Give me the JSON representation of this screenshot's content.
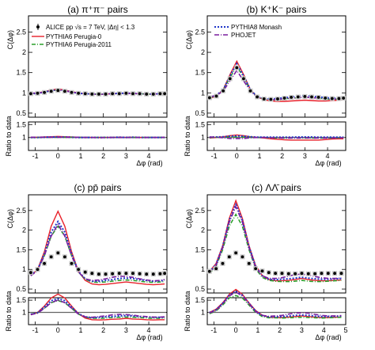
{
  "figure": {
    "y_label_main": "C(Δφ)",
    "y_label_ratio": "Ratio to data",
    "x_label": "Δφ (rad)"
  },
  "legend_left": {
    "data_label": "ALICE pp √s = 7 TeV, |Δη| < 1.3",
    "items": [
      "PYTHIA6 Perugia-0",
      "PYTHIA6 Perugia-2011"
    ]
  },
  "legend_right": {
    "items": [
      "PYTHIA8 Monash",
      "PHOJET"
    ]
  },
  "colors": {
    "data": "#000000",
    "perugia0": "#e8202a",
    "perugia2011": "#2ca02c",
    "monash": "#1f35c8",
    "phojet": "#7a1f9e",
    "band": "#c8c8c8"
  },
  "chart_data": [
    {
      "type": "line",
      "title": "(a) π⁺π⁻ pairs",
      "xlim": [
        -1.3,
        4.8
      ],
      "ylim": [
        0.4,
        2.9
      ],
      "ratio_ylim": [
        0.5,
        1.6
      ],
      "x": [
        -1.2,
        -0.9,
        -0.6,
        -0.3,
        0,
        0.3,
        0.6,
        0.9,
        1.2,
        1.5,
        1.8,
        2.1,
        2.4,
        2.7,
        3.0,
        3.3,
        3.6,
        3.9,
        4.2,
        4.5,
        4.7
      ],
      "series": [
        {
          "name": "ALICE pp √s = 7 TeV, |Δη| < 1.3",
          "key": "data",
          "values": [
            0.98,
            0.99,
            1.01,
            1.04,
            1.06,
            1.04,
            1.01,
            0.99,
            0.98,
            0.97,
            0.97,
            0.97,
            0.98,
            0.98,
            0.99,
            0.98,
            0.98,
            0.97,
            0.97,
            0.98,
            0.98
          ]
        },
        {
          "name": "PYTHIA6 Perugia-0",
          "key": "perugia0",
          "values": [
            0.98,
            1.0,
            1.03,
            1.07,
            1.1,
            1.07,
            1.03,
            1.0,
            0.98,
            0.97,
            0.97,
            0.97,
            0.98,
            0.99,
            0.99,
            0.99,
            0.98,
            0.97,
            0.97,
            0.98,
            0.98
          ]
        },
        {
          "name": "PYTHIA6 Perugia-2011",
          "key": "perugia2011",
          "values": [
            0.98,
            0.99,
            1.02,
            1.05,
            1.07,
            1.05,
            1.02,
            0.99,
            0.98,
            0.97,
            0.97,
            0.97,
            0.98,
            0.98,
            0.99,
            0.98,
            0.98,
            0.97,
            0.97,
            0.98,
            0.98
          ]
        },
        {
          "name": "PYTHIA8 Monash",
          "key": "monash",
          "values": [
            0.98,
            0.99,
            1.02,
            1.06,
            1.08,
            1.06,
            1.02,
            0.99,
            0.98,
            0.97,
            0.97,
            0.97,
            0.98,
            0.99,
            0.99,
            0.99,
            0.98,
            0.97,
            0.97,
            0.98,
            0.98
          ]
        },
        {
          "name": "PHOJET",
          "key": "phojet",
          "values": [
            0.99,
            1.0,
            1.02,
            1.05,
            1.07,
            1.05,
            1.02,
            1.0,
            0.98,
            0.97,
            0.96,
            0.97,
            0.98,
            0.98,
            0.99,
            0.98,
            0.98,
            0.97,
            0.97,
            0.98,
            0.99
          ]
        }
      ],
      "ratios": [
        {
          "key": "perugia0",
          "values": [
            1.0,
            1.01,
            1.02,
            1.03,
            1.04,
            1.03,
            1.02,
            1.01,
            1.0,
            1.0,
            1.0,
            1.0,
            1.0,
            1.01,
            1.0,
            1.01,
            1.0,
            1.0,
            1.0,
            1.0,
            1.0
          ]
        },
        {
          "key": "perugia2011",
          "values": [
            1.0,
            1.0,
            1.01,
            1.01,
            1.01,
            1.01,
            1.01,
            1.0,
            1.0,
            1.0,
            1.0,
            1.0,
            1.0,
            1.0,
            1.0,
            1.0,
            1.0,
            1.0,
            1.0,
            1.0,
            1.0
          ]
        },
        {
          "key": "monash",
          "values": [
            1.0,
            1.0,
            1.01,
            1.02,
            1.02,
            1.02,
            1.01,
            1.0,
            1.0,
            1.0,
            1.0,
            1.0,
            1.0,
            1.01,
            1.0,
            1.01,
            1.0,
            1.0,
            1.0,
            1.0,
            1.0
          ]
        },
        {
          "key": "phojet",
          "values": [
            1.01,
            1.01,
            1.01,
            1.01,
            1.01,
            1.01,
            1.01,
            1.01,
            1.0,
            1.0,
            0.99,
            1.0,
            1.0,
            1.0,
            1.0,
            1.0,
            1.0,
            1.0,
            1.0,
            1.0,
            1.01
          ]
        }
      ]
    },
    {
      "type": "line",
      "title": "(b) K⁺K⁻ pairs",
      "xlim": [
        -1.3,
        4.8
      ],
      "ylim": [
        0.4,
        2.9
      ],
      "ratio_ylim": [
        0.5,
        1.6
      ],
      "x": [
        -1.2,
        -0.9,
        -0.6,
        -0.3,
        0,
        0.3,
        0.6,
        0.9,
        1.2,
        1.5,
        1.8,
        2.1,
        2.4,
        2.7,
        3.0,
        3.3,
        3.6,
        3.9,
        4.2,
        4.5,
        4.7
      ],
      "series": [
        {
          "name": "data",
          "key": "data",
          "values": [
            0.88,
            0.92,
            1.05,
            1.35,
            1.62,
            1.35,
            1.05,
            0.9,
            0.85,
            0.84,
            0.85,
            0.87,
            0.89,
            0.9,
            0.91,
            0.9,
            0.89,
            0.87,
            0.86,
            0.86,
            0.87
          ]
        },
        {
          "name": "PYTHIA6 Perugia-0",
          "key": "perugia0",
          "values": [
            0.86,
            0.92,
            1.08,
            1.45,
            1.78,
            1.45,
            1.08,
            0.9,
            0.83,
            0.8,
            0.79,
            0.79,
            0.8,
            0.81,
            0.82,
            0.81,
            0.8,
            0.8,
            0.81,
            0.82,
            0.83
          ]
        },
        {
          "name": "PYTHIA6 Perugia-2011",
          "key": "perugia2011",
          "values": [
            0.88,
            0.93,
            1.06,
            1.38,
            1.66,
            1.38,
            1.06,
            0.9,
            0.85,
            0.83,
            0.83,
            0.85,
            0.87,
            0.88,
            0.89,
            0.88,
            0.87,
            0.85,
            0.84,
            0.85,
            0.86
          ]
        },
        {
          "name": "PYTHIA8 Monash",
          "key": "monash",
          "values": [
            0.89,
            0.94,
            1.08,
            1.42,
            1.72,
            1.42,
            1.08,
            0.91,
            0.86,
            0.85,
            0.86,
            0.88,
            0.9,
            0.92,
            0.93,
            0.92,
            0.9,
            0.88,
            0.87,
            0.87,
            0.88
          ]
        },
        {
          "name": "PHOJET",
          "key": "phojet",
          "values": [
            0.9,
            0.94,
            1.04,
            1.3,
            1.55,
            1.3,
            1.04,
            0.9,
            0.85,
            0.83,
            0.84,
            0.85,
            0.87,
            0.88,
            0.9,
            0.88,
            0.87,
            0.85,
            0.84,
            0.85,
            0.86
          ]
        }
      ],
      "ratios": [
        {
          "key": "perugia0",
          "values": [
            0.98,
            1.0,
            1.03,
            1.07,
            1.1,
            1.07,
            1.03,
            1.0,
            0.98,
            0.95,
            0.93,
            0.91,
            0.9,
            0.9,
            0.9,
            0.9,
            0.9,
            0.92,
            0.94,
            0.95,
            0.95
          ]
        },
        {
          "key": "perugia2011",
          "values": [
            1.0,
            1.01,
            1.01,
            1.02,
            1.02,
            1.02,
            1.01,
            1.0,
            1.0,
            0.99,
            0.98,
            0.98,
            0.98,
            0.98,
            0.98,
            0.98,
            0.98,
            0.98,
            0.98,
            0.99,
            0.99
          ]
        },
        {
          "key": "monash",
          "values": [
            1.01,
            1.02,
            1.03,
            1.05,
            1.06,
            1.05,
            1.03,
            1.01,
            1.01,
            1.01,
            1.01,
            1.01,
            1.01,
            1.02,
            1.02,
            1.02,
            1.01,
            1.01,
            1.01,
            1.01,
            1.01
          ]
        },
        {
          "key": "phojet",
          "values": [
            1.02,
            1.02,
            0.99,
            0.96,
            0.96,
            0.96,
            0.99,
            1.0,
            1.0,
            0.99,
            0.99,
            0.98,
            0.98,
            0.98,
            0.99,
            0.98,
            0.98,
            0.98,
            0.98,
            0.99,
            0.99
          ]
        }
      ]
    },
    {
      "type": "line",
      "title": "(c) pp̄ pairs",
      "xlim": [
        -1.3,
        4.8
      ],
      "ylim": [
        0.4,
        2.9
      ],
      "ratio_ylim": [
        0.5,
        1.6
      ],
      "x": [
        -1.2,
        -0.9,
        -0.6,
        -0.3,
        0,
        0.3,
        0.6,
        0.9,
        1.2,
        1.5,
        1.8,
        2.1,
        2.4,
        2.7,
        3.0,
        3.3,
        3.6,
        3.9,
        4.2,
        4.5,
        4.7
      ],
      "series": [
        {
          "name": "data",
          "key": "data",
          "values": [
            0.92,
            1.0,
            1.15,
            1.32,
            1.42,
            1.32,
            1.15,
            1.0,
            0.93,
            0.9,
            0.88,
            0.88,
            0.89,
            0.9,
            0.9,
            0.9,
            0.89,
            0.88,
            0.88,
            0.89,
            0.9
          ]
        },
        {
          "name": "PYTHIA6 Perugia-0",
          "key": "perugia0",
          "values": [
            0.84,
            1.0,
            1.45,
            2.1,
            2.48,
            2.1,
            1.45,
            0.95,
            0.72,
            0.63,
            0.61,
            0.62,
            0.64,
            0.66,
            0.68,
            0.66,
            0.64,
            0.62,
            0.61,
            0.62,
            0.63
          ]
        },
        {
          "name": "PYTHIA6 Perugia-2011",
          "key": "perugia2011",
          "values": [
            0.86,
            0.98,
            1.35,
            1.85,
            2.1,
            1.85,
            1.35,
            0.93,
            0.75,
            0.68,
            0.67,
            0.68,
            0.7,
            0.72,
            0.73,
            0.72,
            0.7,
            0.68,
            0.67,
            0.68,
            0.69
          ]
        },
        {
          "name": "PYTHIA8 Monash",
          "key": "monash",
          "values": [
            0.85,
            0.99,
            1.4,
            1.95,
            2.22,
            1.95,
            1.4,
            0.95,
            0.76,
            0.7,
            0.7,
            0.72,
            0.74,
            0.77,
            0.78,
            0.77,
            0.74,
            0.72,
            0.7,
            0.71,
            0.72
          ]
        },
        {
          "name": "PHOJET",
          "key": "phojet",
          "values": [
            0.84,
            0.97,
            1.35,
            1.85,
            2.15,
            1.85,
            1.35,
            0.93,
            0.76,
            0.72,
            0.73,
            0.76,
            0.8,
            0.83,
            0.82,
            0.8,
            0.76,
            0.73,
            0.71,
            0.72,
            0.74
          ]
        }
      ],
      "ratios": [
        {
          "key": "perugia0",
          "values": [
            0.9,
            1.0,
            1.26,
            1.59,
            1.75,
            1.59,
            1.26,
            0.95,
            0.77,
            0.7,
            0.69,
            0.7,
            0.72,
            0.73,
            0.76,
            0.73,
            0.72,
            0.7,
            0.69,
            0.7,
            0.7
          ]
        },
        {
          "key": "perugia2011",
          "values": [
            0.93,
            0.98,
            1.17,
            1.4,
            1.48,
            1.4,
            1.17,
            0.93,
            0.81,
            0.76,
            0.76,
            0.77,
            0.79,
            0.8,
            0.81,
            0.8,
            0.79,
            0.77,
            0.76,
            0.76,
            0.77
          ]
        },
        {
          "key": "monash",
          "values": [
            0.92,
            0.99,
            1.22,
            1.48,
            1.56,
            1.48,
            1.22,
            0.95,
            0.82,
            0.78,
            0.8,
            0.82,
            0.83,
            0.86,
            0.87,
            0.86,
            0.83,
            0.82,
            0.8,
            0.8,
            0.8
          ]
        },
        {
          "key": "phojet",
          "values": [
            0.91,
            0.97,
            1.17,
            1.4,
            1.51,
            1.4,
            1.17,
            0.93,
            0.82,
            0.8,
            0.83,
            0.86,
            0.9,
            0.92,
            0.91,
            0.89,
            0.85,
            0.83,
            0.81,
            0.81,
            0.82
          ]
        }
      ]
    },
    {
      "type": "line",
      "title": "(c) ΛΛ̄ pairs",
      "xlim": [
        -1.3,
        5.0
      ],
      "ylim": [
        0.4,
        2.9
      ],
      "ratio_ylim": [
        0.5,
        1.6
      ],
      "x": [
        -1.2,
        -0.9,
        -0.6,
        -0.3,
        0,
        0.3,
        0.6,
        0.9,
        1.2,
        1.5,
        1.8,
        2.1,
        2.4,
        2.7,
        3.0,
        3.3,
        3.6,
        3.9,
        4.2,
        4.5,
        4.8
      ],
      "series": [
        {
          "name": "data",
          "key": "data",
          "values": [
            0.95,
            1.02,
            1.15,
            1.32,
            1.42,
            1.32,
            1.15,
            1.02,
            0.96,
            0.92,
            0.9,
            0.9,
            0.89,
            0.89,
            0.9,
            0.89,
            0.89,
            0.9,
            0.9,
            0.9,
            0.9
          ]
        },
        {
          "name": "PYTHIA6 Perugia-0",
          "key": "perugia0",
          "values": [
            0.95,
            1.15,
            1.6,
            2.3,
            2.75,
            2.3,
            1.6,
            1.1,
            0.85,
            0.74,
            0.71,
            0.71,
            0.72,
            0.74,
            0.77,
            0.74,
            0.72,
            0.71,
            0.71,
            0.72,
            0.73
          ]
        },
        {
          "name": "PYTHIA6 Perugia-2011",
          "key": "perugia2011",
          "values": [
            0.9,
            1.08,
            1.5,
            2.1,
            2.4,
            2.1,
            1.5,
            1.02,
            0.8,
            0.72,
            0.7,
            0.69,
            0.69,
            0.7,
            0.72,
            0.7,
            0.69,
            0.69,
            0.7,
            0.71,
            0.72
          ]
        },
        {
          "name": "PYTHIA8 Monash",
          "key": "monash",
          "values": [
            0.94,
            1.13,
            1.58,
            2.25,
            2.65,
            2.25,
            1.58,
            1.08,
            0.84,
            0.75,
            0.74,
            0.75,
            0.76,
            0.78,
            0.8,
            0.78,
            0.76,
            0.75,
            0.75,
            0.76,
            0.77
          ]
        },
        {
          "name": "PHOJET",
          "key": "phojet",
          "values": [
            0.93,
            1.1,
            1.55,
            2.2,
            2.6,
            2.2,
            1.55,
            1.05,
            0.84,
            0.77,
            0.77,
            0.79,
            0.83,
            0.87,
            0.88,
            0.86,
            0.82,
            0.79,
            0.77,
            0.77,
            0.78
          ]
        }
      ],
      "ratios": [
        {
          "key": "perugia0",
          "values": [
            1.0,
            1.13,
            1.39,
            1.74,
            1.94,
            1.74,
            1.39,
            1.08,
            0.89,
            0.8,
            0.79,
            0.79,
            0.81,
            0.83,
            0.86,
            0.83,
            0.81,
            0.79,
            0.79,
            0.8,
            0.81
          ]
        },
        {
          "key": "perugia2011",
          "values": [
            0.95,
            1.06,
            1.3,
            1.59,
            1.69,
            1.59,
            1.3,
            1.0,
            0.83,
            0.78,
            0.78,
            0.77,
            0.78,
            0.79,
            0.8,
            0.79,
            0.78,
            0.77,
            0.78,
            0.79,
            0.8
          ]
        },
        {
          "key": "monash",
          "values": [
            0.99,
            1.11,
            1.37,
            1.7,
            1.87,
            1.7,
            1.37,
            1.06,
            0.88,
            0.82,
            0.82,
            0.83,
            0.85,
            0.88,
            0.89,
            0.88,
            0.85,
            0.83,
            0.83,
            0.84,
            0.86
          ]
        },
        {
          "key": "phojet",
          "values": [
            0.98,
            1.08,
            1.35,
            1.67,
            1.83,
            1.67,
            1.35,
            1.03,
            0.88,
            0.84,
            0.86,
            0.88,
            0.93,
            0.98,
            0.98,
            0.97,
            0.92,
            0.88,
            0.86,
            0.86,
            0.87
          ]
        }
      ]
    }
  ]
}
